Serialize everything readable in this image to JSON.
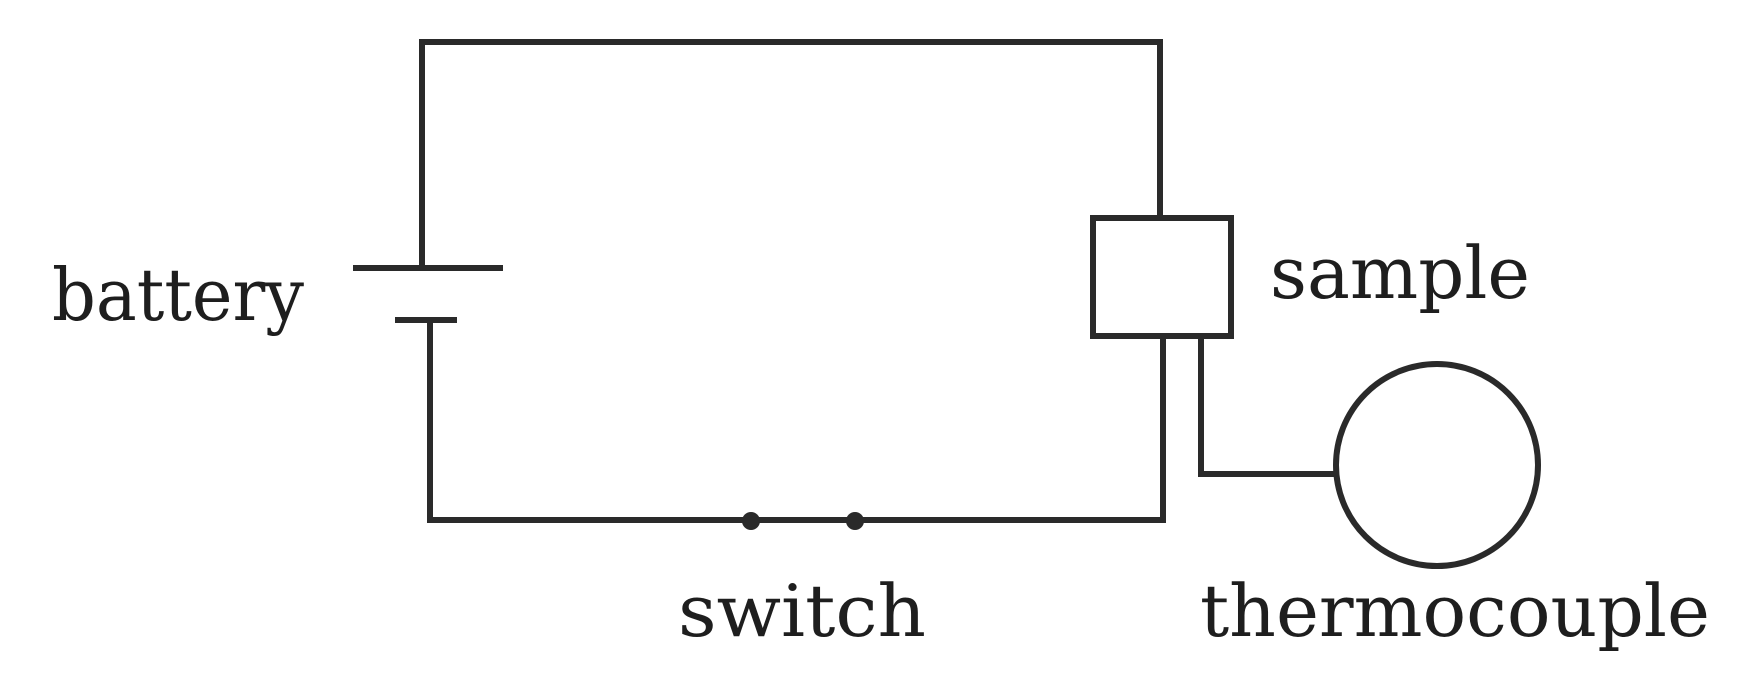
{
  "diagram": {
    "labels": {
      "battery": "battery",
      "sample": "sample",
      "switch": "switch",
      "thermocouple": "thermocouple"
    }
  }
}
